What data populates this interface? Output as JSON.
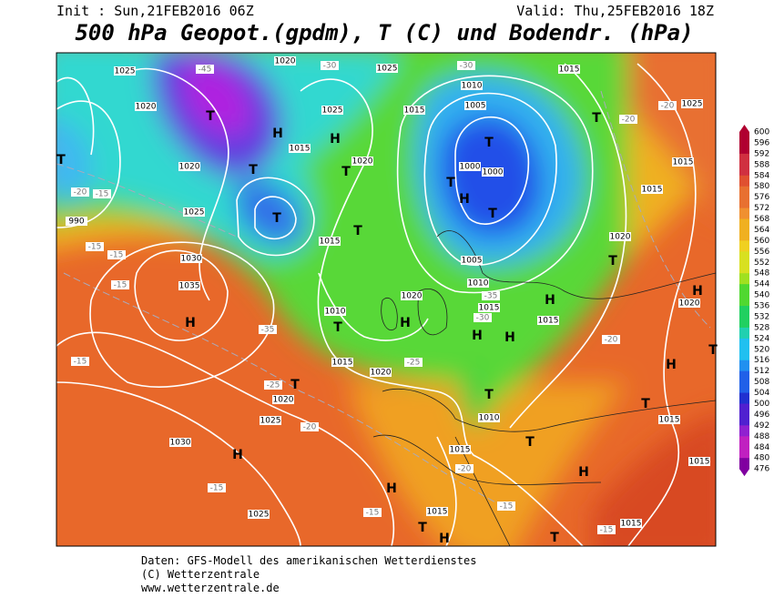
{
  "header": {
    "init": "Init : Sun,21FEB2016 06Z",
    "valid": "Valid: Thu,25FEB2016 18Z",
    "title": "500 hPa Geopot.(gpdm), T (C) und Bodendr. (hPa)"
  },
  "colorbar": {
    "labels": [
      "600",
      "596",
      "592",
      "588",
      "584",
      "580",
      "576",
      "572",
      "568",
      "564",
      "560",
      "556",
      "552",
      "548",
      "544",
      "540",
      "536",
      "532",
      "528",
      "524",
      "520",
      "516",
      "512",
      "508",
      "504",
      "500",
      "496",
      "492",
      "488",
      "484",
      "480",
      "476"
    ]
  },
  "isobar_labels": [
    "1025",
    "1020",
    "1025",
    "1015",
    "1010",
    "1005",
    "1020",
    "1025",
    "1015",
    "1015",
    "1020",
    "1000",
    "1000",
    "1020",
    "1025",
    "1015",
    "1005",
    "1010",
    "1020",
    "1015",
    "1010",
    "1015",
    "1030",
    "1035",
    "1015",
    "1020",
    "1020",
    "1025",
    "1030",
    "1025",
    "1015",
    "1010",
    "1015",
    "1015",
    "1015",
    "1015",
    "1020",
    "1015",
    "1015",
    "1025",
    "1020",
    "990"
  ],
  "temperature_labels": [
    "-45",
    "-30",
    "-30",
    "-20",
    "-20",
    "-20",
    "-15",
    "-15",
    "-15",
    "-15",
    "-15",
    "-35",
    "-25",
    "-25",
    "-20",
    "-35",
    "-30",
    "-20",
    "-20",
    "-15",
    "-15",
    "-15",
    "-15"
  ],
  "pressure_centers": [
    "T",
    "H",
    "H",
    "T",
    "T",
    "T",
    "T",
    "H",
    "T",
    "T",
    "T",
    "H",
    "T",
    "H",
    "T",
    "H",
    "T",
    "H",
    "T",
    "T",
    "H",
    "T",
    "H",
    "H",
    "H",
    "T",
    "T",
    "H",
    "T",
    "T",
    "H",
    "T",
    "H"
  ],
  "footer": [
    "Daten: GFS-Modell des amerikanischen Wetterdienstes",
    "(C) Wetterzentrale",
    "www.wetterzentrale.de"
  ]
}
